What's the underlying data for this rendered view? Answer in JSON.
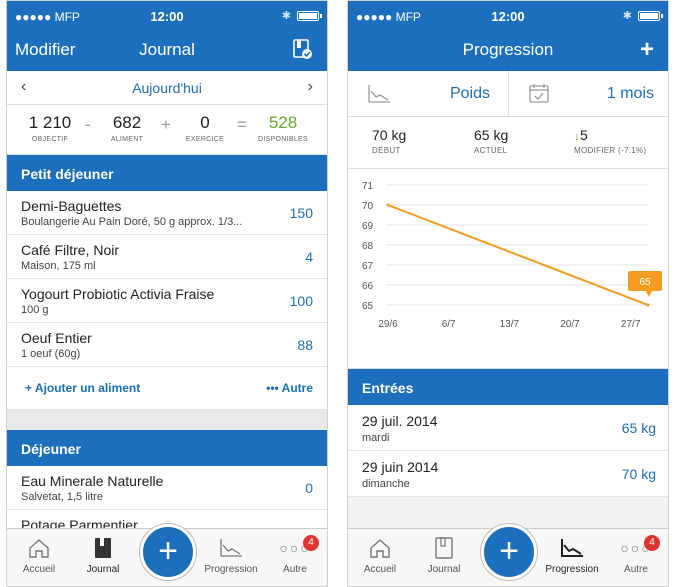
{
  "status": {
    "carrier": "●●●●● MFP",
    "time": "12:00"
  },
  "journal": {
    "nav": {
      "left": "Modifier",
      "title": "Journal"
    },
    "date": {
      "label": "Aujourd'hui",
      "prev": "‹",
      "next": "›"
    },
    "calc": {
      "goal": {
        "value": "1 210",
        "label": "OBJECTIF"
      },
      "op1": "-",
      "food": {
        "value": "682",
        "label": "ALIMENT"
      },
      "op2": "+",
      "exercise": {
        "value": "0",
        "label": "EXERCICE"
      },
      "op3": "=",
      "remaining": {
        "value": "528",
        "label": "DISPONIBLES"
      }
    },
    "sections": [
      {
        "title": "Petit déjeuner",
        "items": [
          {
            "name": "Demi-Baguettes",
            "detail": "Boulangerie Au Pain Doré, 50 g approx. 1/3...",
            "calories": "150"
          },
          {
            "name": "Café Filtre, Noir",
            "detail": "Maison, 175 ml",
            "calories": "4"
          },
          {
            "name": "Yogourt Probiotic Activia Fraise",
            "detail": "100 g",
            "calories": "100"
          },
          {
            "name": "Oeuf Entier",
            "detail": "1 oeuf (60g)",
            "calories": "88"
          }
        ],
        "add_label": "+ Ajouter un aliment",
        "more_label": "••• Autre"
      },
      {
        "title": "Déjeuner",
        "items": [
          {
            "name": "Eau Minerale Naturelle",
            "detail": "Salvetat, 1,5 litre",
            "calories": "0"
          },
          {
            "name": "Potage Parmentier",
            "detail": "",
            "calories": ""
          }
        ]
      }
    ]
  },
  "progress": {
    "nav": {
      "title": "Progression",
      "plus": "+"
    },
    "filter": {
      "metric": "Poids",
      "period": "1 mois"
    },
    "stats": {
      "start": {
        "value": "70 kg",
        "label": "DÉBUT"
      },
      "current": {
        "value": "65 kg",
        "label": "ACTUEL"
      },
      "change": {
        "value": "5",
        "label": "MODIFIER (-7.1%)"
      }
    },
    "entries_title": "Entrées",
    "entries": [
      {
        "date": "29 juil. 2014",
        "weekday": "mardi",
        "value": "65 kg"
      },
      {
        "date": "29 juin 2014",
        "weekday": "dimanche",
        "value": "70 kg"
      }
    ]
  },
  "chart_data": {
    "type": "line",
    "x": [
      "29/6",
      "6/7",
      "13/7",
      "20/7",
      "27/7"
    ],
    "ylim": [
      65,
      71
    ],
    "yticks": [
      71,
      70,
      69,
      68,
      67,
      66,
      65
    ],
    "series": [
      {
        "points": [
          {
            "x": "2014-06-29",
            "y": 70
          },
          {
            "x": "2014-07-29",
            "y": 65
          }
        ]
      }
    ],
    "annotation": "65",
    "color": "#f39c1f",
    "grid": true
  },
  "tabs": {
    "home": "Accueil",
    "journal": "Journal",
    "progress": "Progression",
    "more": "Autre",
    "badge": "4",
    "fab": "+"
  },
  "colors": {
    "accent": "#1c6fbd",
    "green": "#6aa826",
    "orange": "#f39c1f",
    "badge": "#e0332e"
  }
}
